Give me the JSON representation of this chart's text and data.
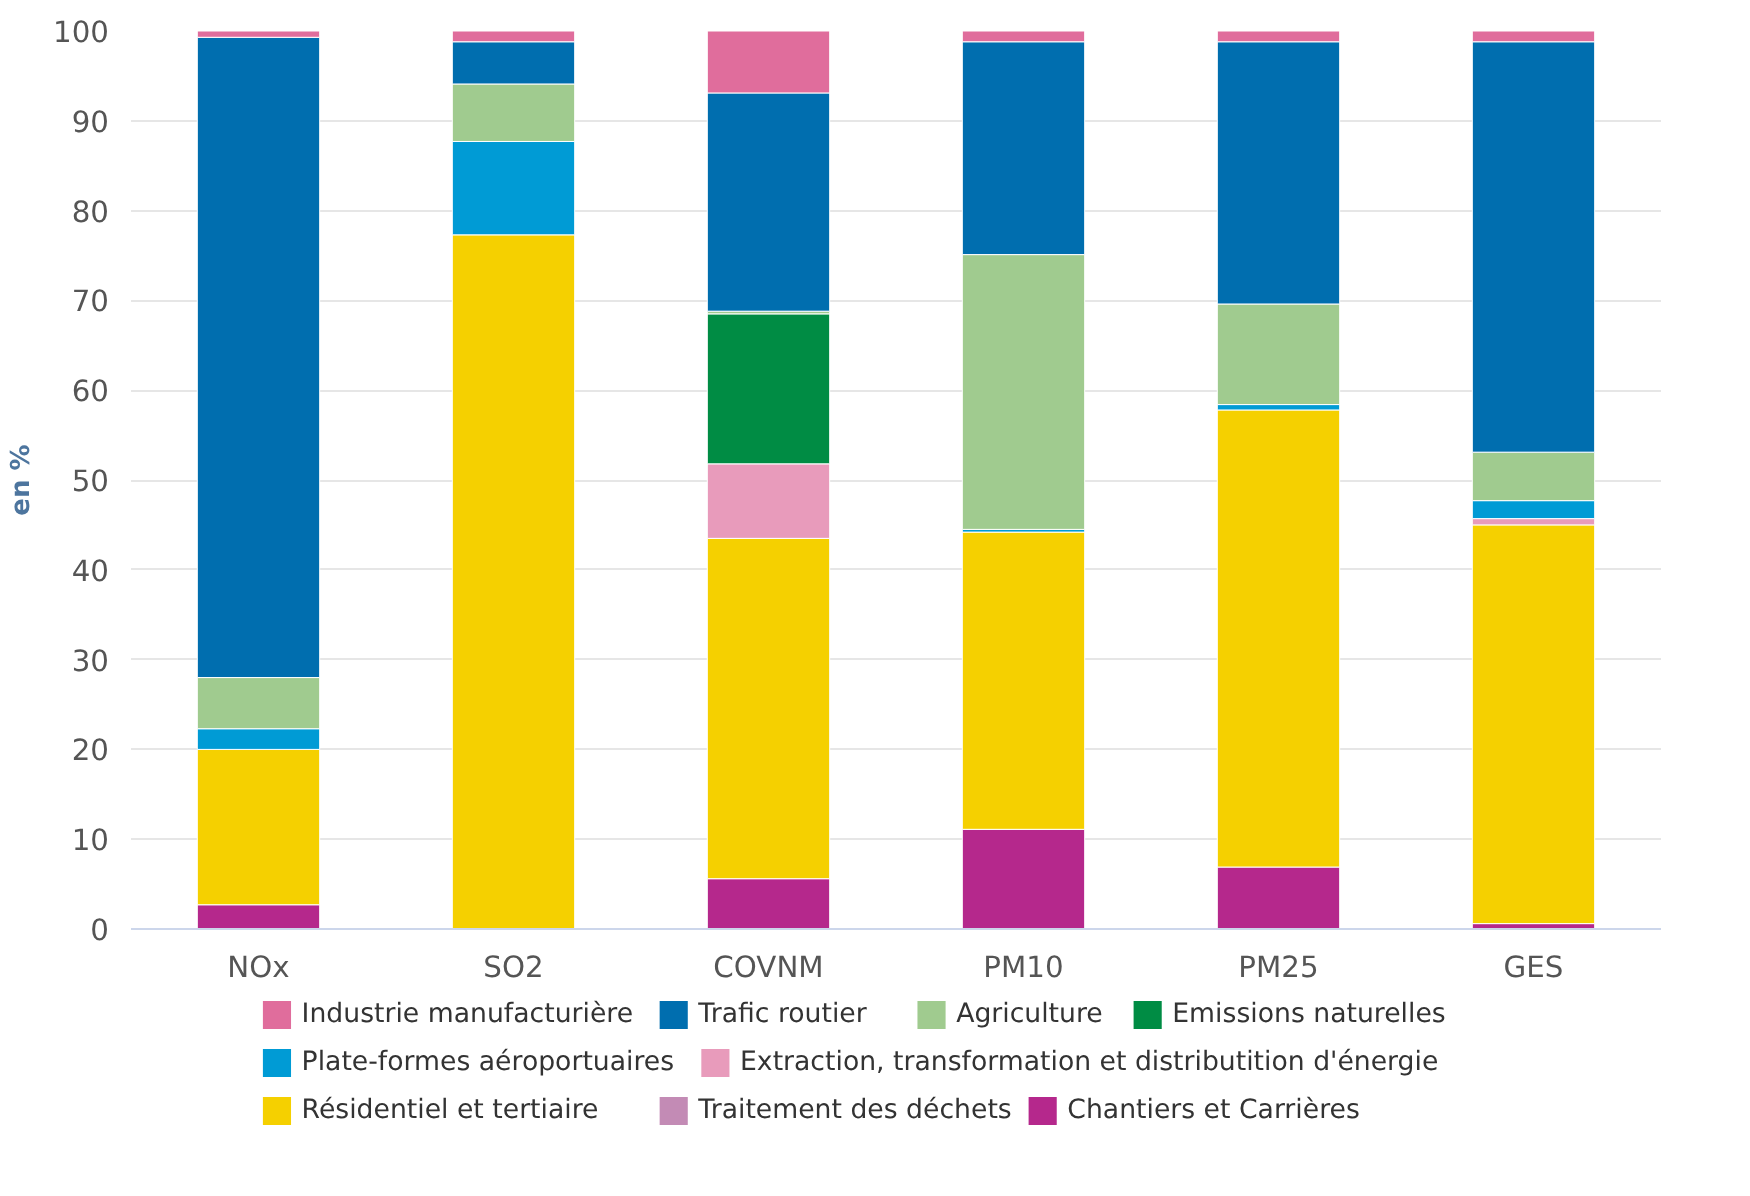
{
  "chart_data": {
    "type": "bar",
    "stacked": true,
    "ylabel": "en %",
    "categories": [
      "NOx",
      "SO2",
      "COVNM",
      "PM10",
      "PM25",
      "GES"
    ],
    "ylim": [
      0,
      100
    ],
    "yticks": [
      0,
      10,
      20,
      30,
      40,
      50,
      60,
      70,
      80,
      90,
      100
    ],
    "grid": "y",
    "legend": "bottom",
    "series": [
      {
        "name": "Chantiers et Carrières",
        "color": "#b5288c",
        "values": [
          2.7,
          null,
          5.6,
          11.1,
          6.9,
          0.6
        ]
      },
      {
        "name": "Traitement des déchets",
        "color": "#c38bb5",
        "values": [
          null,
          null,
          null,
          null,
          null,
          null
        ]
      },
      {
        "name": "Résidentiel et tertiaire",
        "color": "#f5d000",
        "values": [
          17.3,
          77.3,
          37.9,
          33.1,
          50.9,
          44.4
        ]
      },
      {
        "name": "Extraction, transformation et distributition d'énergie",
        "color": "#e89bbb",
        "values": [
          null,
          null,
          8.3,
          null,
          null,
          0.7
        ]
      },
      {
        "name": "Plate-formes aéroportuaires",
        "color": "#009bd5",
        "values": [
          2.3,
          10.4,
          null,
          0.3,
          0.6,
          2.0
        ]
      },
      {
        "name": "Emissions naturelles",
        "color": "#008c44",
        "values": [
          null,
          null,
          16.7,
          null,
          null,
          null
        ]
      },
      {
        "name": "Agriculture",
        "color": "#a0cb8f",
        "values": [
          5.7,
          6.4,
          0.3,
          30.6,
          11.2,
          5.4
        ]
      },
      {
        "name": "Trafic routier",
        "color": "#006eaf",
        "values": [
          71.3,
          4.7,
          24.3,
          23.7,
          29.2,
          45.7
        ]
      },
      {
        "name": "Industrie manufacturière",
        "color": "#e06d9c",
        "values": [
          0.7,
          1.2,
          6.9,
          1.2,
          1.2,
          1.2
        ]
      }
    ]
  }
}
